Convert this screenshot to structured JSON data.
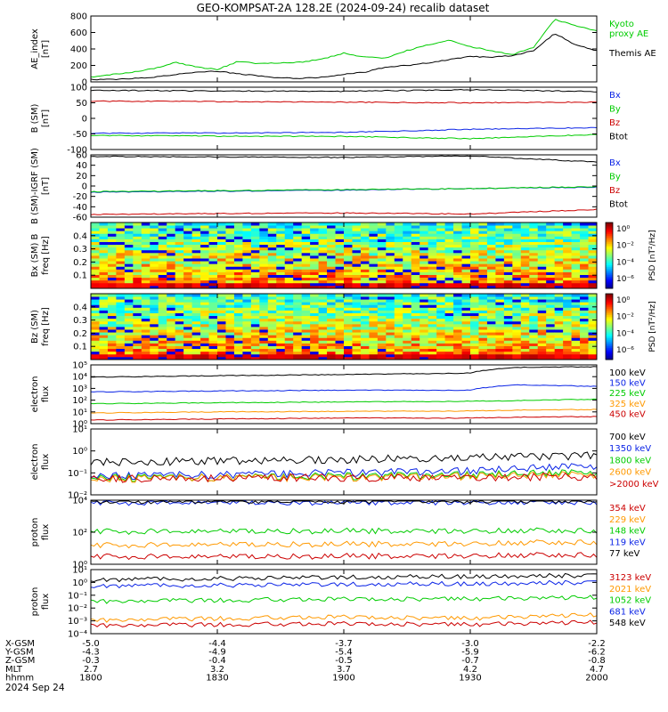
{
  "title": "GEO-KOMPSAT-2A 128.2E (2024-09-24) recalib dataset",
  "date_label": "2024 Sep 24",
  "colors": {
    "black": "#000000",
    "blue": "#0b24e6",
    "green": "#00cc00",
    "orange": "#ff9900",
    "red": "#cc0000",
    "light_green": "#33dd33"
  },
  "chart_data": [
    {
      "type": "line",
      "ylabel": "AE_index\n[nT]",
      "ylim": [
        0,
        800
      ],
      "ytick_labels": [
        "0",
        "200",
        "400",
        "600",
        "800"
      ],
      "series": [
        {
          "name": "Kyoto\nproxy AE",
          "color": "green",
          "x": [
            0,
            5,
            10,
            15,
            20,
            25,
            30,
            35,
            40,
            45,
            50,
            55,
            60,
            65,
            70,
            75,
            80,
            85,
            90,
            95,
            100,
            105,
            110,
            115,
            120
          ],
          "values": [
            60,
            90,
            120,
            160,
            240,
            180,
            150,
            250,
            220,
            230,
            240,
            280,
            350,
            300,
            290,
            380,
            450,
            510,
            430,
            380,
            330,
            420,
            760,
            680,
            620
          ]
        },
        {
          "name": "Themis AE",
          "color": "black",
          "x": [
            0,
            5,
            10,
            15,
            20,
            25,
            30,
            35,
            40,
            45,
            50,
            55,
            60,
            65,
            70,
            75,
            80,
            85,
            90,
            95,
            100,
            105,
            110,
            115,
            120
          ],
          "values": [
            30,
            30,
            40,
            60,
            90,
            120,
            130,
            100,
            70,
            50,
            40,
            60,
            90,
            120,
            180,
            200,
            230,
            270,
            310,
            300,
            320,
            380,
            590,
            450,
            380
          ]
        }
      ]
    },
    {
      "type": "line",
      "ylabel": "B (SM)\n[nT]",
      "ylim": [
        -100,
        100
      ],
      "ytick_labels": [
        "-100",
        "-50",
        "0",
        "50",
        "100"
      ],
      "series": [
        {
          "name": "Bx",
          "color": "blue",
          "x": [
            0,
            30,
            60,
            90,
            120
          ],
          "values": [
            -48,
            -47,
            -45,
            -35,
            -30
          ]
        },
        {
          "name": "By",
          "color": "green",
          "x": [
            0,
            30,
            60,
            90,
            120
          ],
          "values": [
            -55,
            -57,
            -58,
            -65,
            -52
          ]
        },
        {
          "name": "Bz",
          "color": "red",
          "x": [
            0,
            30,
            60,
            90,
            120
          ],
          "values": [
            55,
            54,
            52,
            50,
            52
          ]
        },
        {
          "name": "Btot",
          "color": "black",
          "x": [
            0,
            30,
            60,
            90,
            120
          ],
          "values": [
            90,
            88,
            87,
            92,
            86
          ]
        }
      ]
    },
    {
      "type": "line",
      "ylabel": "B (SM)-IGRF (SM)\n[nT]",
      "ylim": [
        -60,
        60
      ],
      "ytick_labels": [
        "-60",
        "-40",
        "-20",
        "0",
        "20",
        "40",
        "60"
      ],
      "series": [
        {
          "name": "Bx",
          "color": "blue",
          "x": [
            0,
            30,
            60,
            90,
            120
          ],
          "values": [
            -12,
            -10,
            -8,
            -5,
            -2
          ]
        },
        {
          "name": "By",
          "color": "green",
          "x": [
            0,
            30,
            60,
            90,
            120
          ],
          "values": [
            -11,
            -9,
            -7,
            -5,
            -1
          ]
        },
        {
          "name": "Bz",
          "color": "red",
          "x": [
            0,
            30,
            60,
            90,
            120
          ],
          "values": [
            -55,
            -53,
            -52,
            -54,
            -45
          ]
        },
        {
          "name": "Btot",
          "color": "black",
          "x": [
            0,
            30,
            60,
            90,
            120
          ],
          "values": [
            57,
            56,
            55,
            58,
            46
          ]
        }
      ]
    },
    {
      "type": "heatmap",
      "ylabel": "Bx (SM) B\nfreq [Hz]",
      "ylim": [
        0,
        0.5
      ],
      "ytick_labels": [
        "0.1",
        "0.2",
        "0.3",
        "0.4"
      ],
      "colorbar_label": "PSD [nT²/Hz]",
      "colorbar_ticks": [
        "10⁰",
        "10⁻²",
        "10⁻⁴",
        "10⁻⁶"
      ]
    },
    {
      "type": "heatmap",
      "ylabel": "Bz (SM)\nfreq [Hz]",
      "ylim": [
        0,
        0.5
      ],
      "ytick_labels": [
        "0.1",
        "0.2",
        "0.3",
        "0.4"
      ],
      "colorbar_label": "PSD [nT²/Hz]",
      "colorbar_ticks": [
        "10⁰",
        "10⁻²",
        "10⁻⁴",
        "10⁻⁶"
      ]
    },
    {
      "type": "line",
      "ylabel": "electron\nflux",
      "log": true,
      "ylim": [
        1,
        100000
      ],
      "ytick_labels": [
        "10⁰",
        "10¹",
        "10²",
        "10³",
        "10⁴",
        "10⁵"
      ],
      "series": [
        {
          "name": "100 keV",
          "color": "black",
          "x": [
            0,
            30,
            60,
            90,
            100,
            120
          ],
          "values": [
            9000,
            12000,
            15000,
            20000,
            60000,
            70000
          ]
        },
        {
          "name": "150 keV",
          "color": "blue",
          "x": [
            0,
            30,
            60,
            90,
            100,
            120
          ],
          "values": [
            500,
            600,
            700,
            700,
            2000,
            1500
          ]
        },
        {
          "name": "225 keV",
          "color": "green",
          "x": [
            0,
            30,
            60,
            90,
            100,
            120
          ],
          "values": [
            50,
            60,
            70,
            80,
            90,
            120
          ]
        },
        {
          "name": "325 keV",
          "color": "orange",
          "x": [
            0,
            30,
            60,
            90,
            100,
            120
          ],
          "values": [
            8,
            10,
            11,
            12,
            14,
            16
          ]
        },
        {
          "name": "450 keV",
          "color": "red",
          "x": [
            0,
            30,
            60,
            90,
            100,
            120
          ],
          "values": [
            2,
            2.5,
            3,
            3,
            3.5,
            4
          ]
        }
      ]
    },
    {
      "type": "line",
      "ylabel": "electron\nflux",
      "log": true,
      "ylim": [
        0.01,
        10
      ],
      "ytick_labels": [
        "10⁻²",
        "10⁻¹",
        "10⁰",
        "10¹"
      ],
      "series": [
        {
          "name": "700 keV",
          "color": "black",
          "x": [
            0,
            30,
            60,
            90,
            120
          ],
          "values": [
            0.3,
            0.35,
            0.4,
            0.5,
            0.6
          ]
        },
        {
          "name": "1350 keV",
          "color": "blue",
          "x": [
            0,
            30,
            60,
            90,
            120
          ],
          "values": [
            0.07,
            0.08,
            0.1,
            0.12,
            0.2
          ]
        },
        {
          "name": "1800 keV",
          "color": "green",
          "x": [
            0,
            30,
            60,
            90,
            120
          ],
          "values": [
            0.06,
            0.06,
            0.07,
            0.08,
            0.1
          ]
        },
        {
          "name": "2600 keV",
          "color": "orange",
          "x": [
            0,
            30,
            60,
            90,
            120
          ],
          "values": [
            0.05,
            0.06,
            0.06,
            0.07,
            0.08
          ]
        },
        {
          "name": ">2000 keV",
          "color": "red",
          "x": [
            0,
            30,
            60,
            90,
            120
          ],
          "values": [
            0.05,
            0.06,
            0.06,
            0.06,
            0.07
          ]
        }
      ]
    },
    {
      "type": "line",
      "ylabel": "proton\nflux",
      "log": true,
      "ylim": [
        1,
        10000
      ],
      "ytick_labels": [
        "10⁰",
        "10²",
        "10⁴"
      ],
      "series": [
        {
          "name": "354 keV",
          "color": "red",
          "x": [
            0,
            30,
            60,
            90,
            120
          ],
          "values": [
            3,
            3,
            3.2,
            3.5,
            4
          ]
        },
        {
          "name": "229 keV",
          "color": "orange",
          "x": [
            0,
            30,
            60,
            90,
            120
          ],
          "values": [
            15,
            17,
            18,
            20,
            25
          ]
        },
        {
          "name": "148 keV",
          "color": "green",
          "x": [
            0,
            30,
            60,
            90,
            120
          ],
          "values": [
            110,
            115,
            120,
            125,
            130
          ]
        },
        {
          "name": "119 keV",
          "color": "blue",
          "x": [
            0,
            30,
            60,
            90,
            120
          ],
          "values": [
            7000,
            7200,
            7400,
            7600,
            7800
          ]
        },
        {
          "name": "77 keV",
          "color": "black",
          "x": [
            0,
            30,
            60,
            90,
            120
          ],
          "values": [
            8500,
            8800,
            9000,
            9200,
            9500
          ]
        }
      ]
    },
    {
      "type": "line",
      "ylabel": "proton\nflux",
      "log": true,
      "ylim": [
        0.0001,
        10
      ],
      "ytick_labels": [
        "10⁻⁴",
        "10⁻³",
        "10⁻²",
        "10⁻¹",
        "10⁰",
        "10¹"
      ],
      "series": [
        {
          "name": "3123 keV",
          "color": "red",
          "x": [
            0,
            30,
            60,
            90,
            120
          ],
          "values": [
            0.0004,
            0.0005,
            0.0006,
            0.0005,
            0.0008
          ]
        },
        {
          "name": "2021 keV",
          "color": "orange",
          "x": [
            0,
            30,
            60,
            90,
            120
          ],
          "values": [
            0.001,
            0.0015,
            0.002,
            0.0015,
            0.003
          ]
        },
        {
          "name": "1052 keV",
          "color": "green",
          "x": [
            0,
            30,
            60,
            90,
            120
          ],
          "values": [
            0.03,
            0.04,
            0.05,
            0.05,
            0.07
          ]
        },
        {
          "name": "681 keV",
          "color": "blue",
          "x": [
            0,
            30,
            60,
            90,
            120
          ],
          "values": [
            0.5,
            0.6,
            0.7,
            0.8,
            1.0
          ]
        },
        {
          "name": "548 keV",
          "color": "black",
          "x": [
            0,
            30,
            60,
            90,
            120
          ],
          "values": [
            1.5,
            2.0,
            2.5,
            3.0,
            3.5
          ]
        }
      ]
    }
  ],
  "x_axis": {
    "x": [
      0,
      30,
      60,
      90,
      120
    ],
    "rows": [
      {
        "label": "X-GSM",
        "values": [
          "-5.0",
          "-4.4",
          "-3.7",
          "-3.0",
          "-2.2"
        ]
      },
      {
        "label": "Y-GSM",
        "values": [
          "-4.3",
          "-4.9",
          "-5.4",
          "-5.9",
          "-6.2"
        ]
      },
      {
        "label": "Z-GSM",
        "values": [
          "-0.3",
          "-0.4",
          "-0.5",
          "-0.7",
          "-0.8"
        ]
      },
      {
        "label": "MLT",
        "values": [
          "2.7",
          "3.2",
          "3.7",
          "4.2",
          "4.7"
        ]
      },
      {
        "label": "hhmm",
        "values": [
          "1800",
          "1830",
          "1900",
          "1930",
          "2000"
        ]
      }
    ]
  }
}
